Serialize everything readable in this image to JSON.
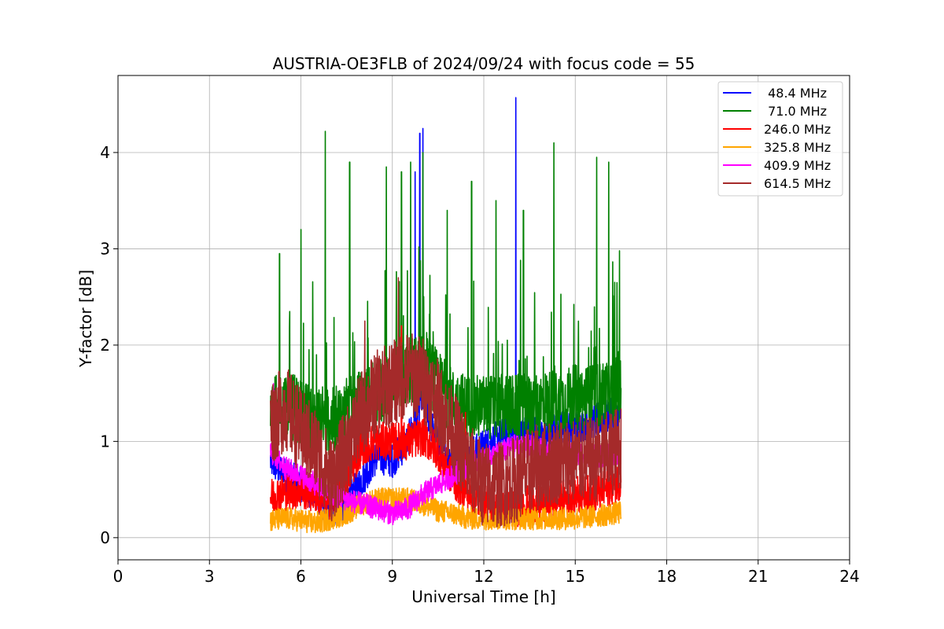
{
  "chart_data": {
    "type": "line",
    "title": "AUSTRIA-OE3FLB of 2024/09/24 with focus code = 55",
    "xlabel": "Universal Time [h]",
    "ylabel": "Y-factor [dB]",
    "xlim": [
      0,
      24
    ],
    "ylim": [
      -0.23,
      4.8
    ],
    "x_ticks": [
      0,
      3,
      6,
      9,
      12,
      15,
      18,
      21,
      24
    ],
    "y_ticks": [
      0,
      1,
      2,
      3,
      4
    ],
    "grid": true,
    "legend_position": "top-right",
    "series": [
      {
        "name": " 48.4 MHz",
        "color": "#0000ff",
        "x": [
          5.0,
          5.5,
          6.0,
          6.5,
          7.0,
          7.5,
          8.0,
          8.5,
          9.0,
          9.5,
          10.0,
          10.5,
          11.0,
          11.5,
          12.0,
          12.5,
          13.0,
          13.5,
          14.0,
          14.5,
          15.0,
          15.5,
          16.0,
          16.5
        ],
        "values": [
          0.8,
          0.65,
          0.55,
          0.45,
          0.25,
          0.35,
          0.6,
          0.85,
          0.8,
          1.0,
          1.45,
          0.95,
          0.8,
          0.85,
          0.95,
          1.05,
          1.1,
          1.1,
          1.05,
          1.15,
          1.15,
          1.2,
          1.25,
          1.3
        ],
        "spikes": [
          [
            9.9,
            4.2
          ],
          [
            10.0,
            4.25
          ],
          [
            13.05,
            4.57
          ],
          [
            9.75,
            3.8
          ]
        ]
      },
      {
        "name": " 71.0 MHz",
        "color": "#008000",
        "x": [
          5.0,
          5.5,
          6.0,
          6.5,
          7.0,
          7.5,
          8.0,
          8.5,
          9.0,
          9.5,
          10.0,
          10.5,
          11.0,
          11.5,
          12.0,
          12.5,
          13.0,
          13.5,
          14.0,
          14.5,
          15.0,
          15.5,
          16.0,
          16.5
        ],
        "values": [
          1.3,
          1.4,
          1.3,
          1.2,
          1.2,
          1.3,
          1.4,
          1.5,
          1.6,
          1.7,
          1.8,
          1.6,
          1.4,
          1.35,
          1.35,
          1.35,
          1.35,
          1.35,
          1.4,
          1.4,
          1.45,
          1.45,
          1.5,
          1.55
        ],
        "spikes": [
          [
            5.3,
            2.95
          ],
          [
            6.0,
            3.2
          ],
          [
            6.8,
            4.22
          ],
          [
            7.6,
            3.9
          ],
          [
            8.8,
            3.85
          ],
          [
            9.3,
            3.8
          ],
          [
            9.6,
            3.9
          ],
          [
            10.0,
            4.0
          ],
          [
            10.8,
            3.4
          ],
          [
            11.6,
            3.7
          ],
          [
            12.4,
            3.5
          ],
          [
            13.3,
            3.4
          ],
          [
            14.3,
            4.1
          ],
          [
            15.7,
            3.95
          ],
          [
            16.1,
            3.9
          ],
          [
            16.45,
            2.98
          ]
        ]
      },
      {
        "name": "246.0 MHz",
        "color": "#ff0000",
        "x": [
          5.0,
          5.5,
          6.0,
          6.5,
          7.0,
          7.5,
          8.0,
          8.5,
          9.0,
          9.5,
          10.0,
          10.5,
          11.0,
          11.5,
          12.0,
          12.5,
          13.0,
          13.5,
          14.0,
          14.5,
          15.0,
          15.5,
          16.0,
          16.5
        ],
        "values": [
          0.42,
          0.48,
          0.5,
          0.45,
          0.35,
          0.6,
          0.95,
          1.0,
          1.0,
          1.0,
          1.05,
          0.9,
          0.6,
          0.45,
          0.35,
          0.3,
          0.3,
          0.35,
          0.35,
          0.4,
          0.45,
          0.45,
          0.5,
          0.6
        ],
        "spikes": [
          [
            9.3,
            2.2
          ],
          [
            8.2,
            1.3
          ],
          [
            11.4,
            1.3
          ]
        ]
      },
      {
        "name": "325.8 MHz",
        "color": "#ffa500",
        "x": [
          5.0,
          5.5,
          6.0,
          6.5,
          7.0,
          7.5,
          8.0,
          8.5,
          9.0,
          9.5,
          10.0,
          10.5,
          11.0,
          11.5,
          12.0,
          12.5,
          13.0,
          13.5,
          14.0,
          14.5,
          15.0,
          15.5,
          16.0,
          16.5
        ],
        "values": [
          0.18,
          0.2,
          0.18,
          0.15,
          0.2,
          0.25,
          0.35,
          0.4,
          0.4,
          0.4,
          0.35,
          0.28,
          0.25,
          0.2,
          0.2,
          0.2,
          0.2,
          0.2,
          0.2,
          0.2,
          0.2,
          0.22,
          0.24,
          0.26
        ],
        "spikes": []
      },
      {
        "name": "409.9 MHz",
        "color": "#ff00ff",
        "x": [
          5.0,
          5.5,
          6.0,
          6.5,
          7.0,
          7.5,
          8.0,
          8.5,
          9.0,
          9.5,
          10.0,
          10.5,
          11.0,
          11.5,
          12.0,
          12.5,
          13.0,
          13.5,
          14.0,
          14.5,
          15.0,
          15.5,
          16.0,
          16.5
        ],
        "values": [
          0.9,
          0.72,
          0.65,
          0.55,
          0.45,
          0.4,
          0.35,
          0.3,
          0.25,
          0.3,
          0.45,
          0.55,
          0.65,
          0.75,
          0.82,
          0.88,
          0.95,
          0.95,
          0.9,
          0.9,
          0.88,
          0.85,
          0.85,
          0.88
        ],
        "spikes": [
          [
            5.1,
            1.6
          ]
        ]
      },
      {
        "name": "614.5 MHz",
        "color": "#a52a2a",
        "x": [
          5.0,
          5.5,
          6.0,
          6.5,
          7.0,
          7.5,
          8.0,
          8.5,
          9.0,
          9.5,
          10.0,
          10.5,
          11.0,
          11.5,
          12.0,
          12.5,
          13.0,
          13.5,
          14.0,
          14.5,
          15.0,
          15.5,
          16.0,
          16.5
        ],
        "values": [
          1.2,
          1.35,
          1.1,
          0.9,
          0.6,
          0.9,
          1.3,
          1.5,
          1.6,
          1.7,
          1.65,
          1.4,
          1.1,
          0.75,
          0.55,
          0.55,
          0.6,
          0.7,
          0.75,
          0.8,
          0.8,
          0.8,
          0.85,
          0.95
        ],
        "spikes": [
          [
            9.2,
            2.7
          ],
          [
            8.1,
            2.25
          ]
        ]
      }
    ]
  }
}
